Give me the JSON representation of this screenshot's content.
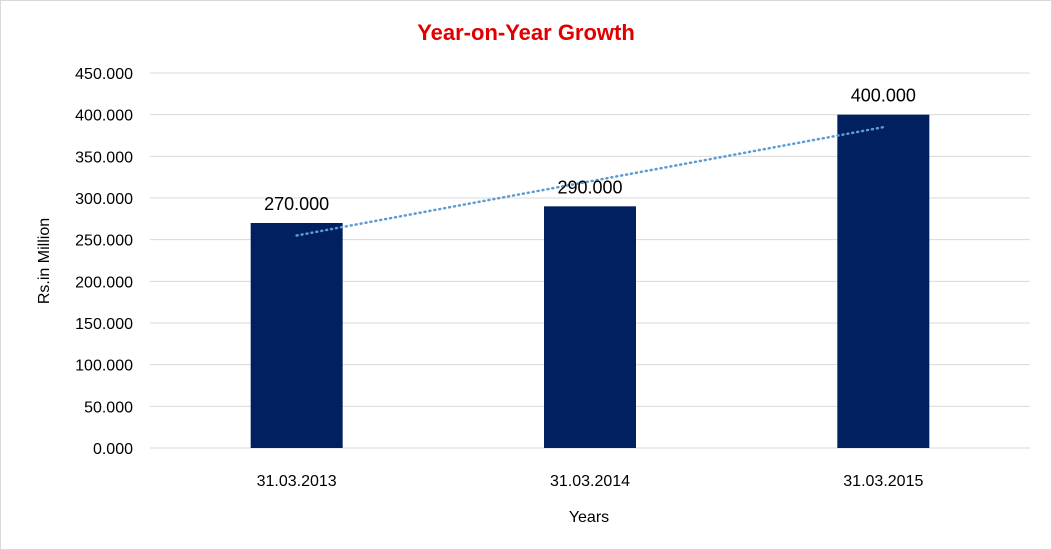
{
  "chart_data": {
    "type": "bar",
    "title": "Year-on-Year Growth",
    "xlabel": "Years",
    "ylabel": "Rs.in Million",
    "categories": [
      "31.03.2013",
      "31.03.2014",
      "31.03.2015"
    ],
    "values": [
      270,
      290,
      400
    ],
    "data_labels": [
      "270.000",
      "290.000",
      "400.000"
    ],
    "ylim": [
      0,
      450
    ],
    "yticks": [
      0,
      50,
      100,
      150,
      200,
      250,
      300,
      350,
      400,
      450
    ],
    "ytick_labels": [
      "0.000",
      "50.000",
      "100.000",
      "150.000",
      "200.000",
      "250.000",
      "300.000",
      "350.000",
      "400.000",
      "450.000"
    ],
    "grid": true,
    "legend": "none",
    "trendline": {
      "type": "linear",
      "style": "dotted"
    },
    "colors": {
      "bar": "#002060",
      "trendline": "#5b9bd5",
      "title": "#e00000",
      "grid": "#d9d9d9"
    }
  }
}
